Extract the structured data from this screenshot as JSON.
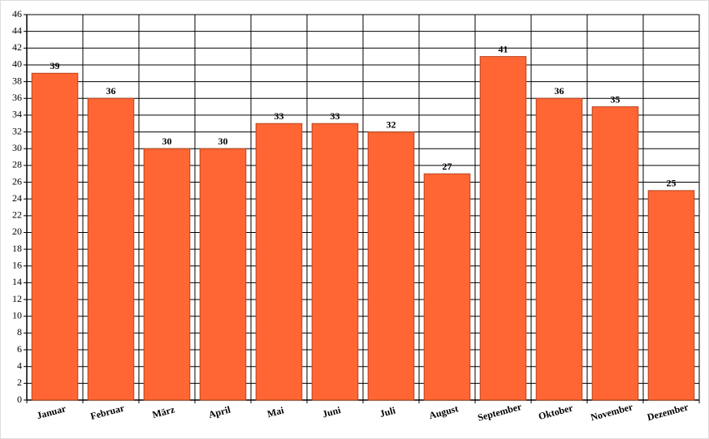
{
  "chart_data": {
    "type": "bar",
    "categories": [
      "Januar",
      "Februar",
      "März",
      "April",
      "Mai",
      "Juni",
      "Juli",
      "August",
      "September",
      "Oktober",
      "November",
      "Dezember"
    ],
    "values": [
      39,
      36,
      30,
      30,
      33,
      33,
      32,
      27,
      41,
      36,
      35,
      25
    ],
    "color": "#ff6633",
    "ylim": [
      0,
      46
    ],
    "yticks": [
      0,
      2,
      4,
      6,
      8,
      10,
      12,
      14,
      16,
      18,
      20,
      22,
      24,
      26,
      28,
      30,
      32,
      34,
      36,
      38,
      40,
      42,
      44,
      46
    ],
    "grid": true
  }
}
